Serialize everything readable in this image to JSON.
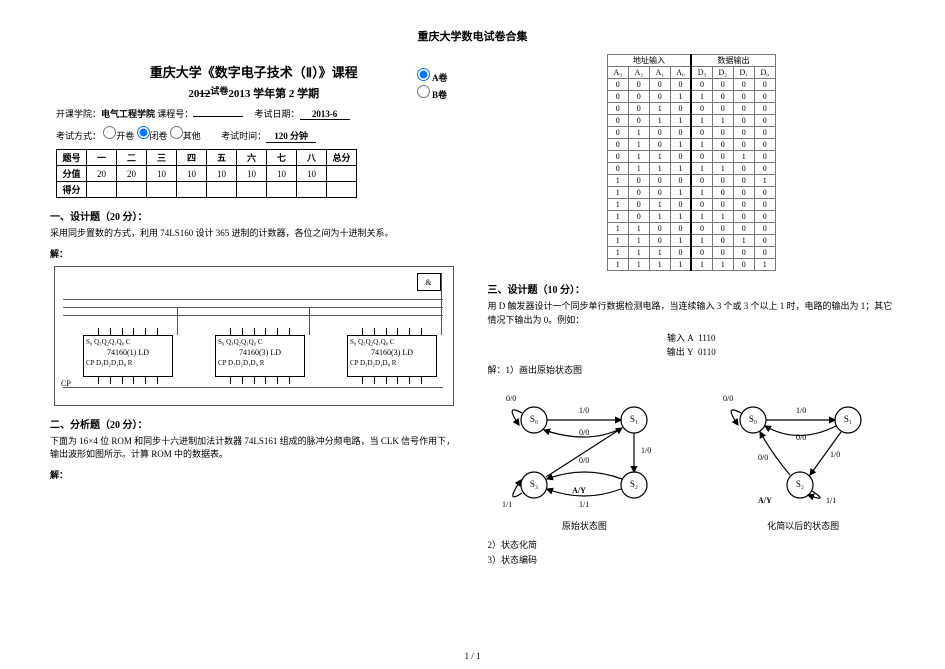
{
  "page": {
    "top_title": "重庆大学数电试卷合集",
    "footer": "1 / 1"
  },
  "header": {
    "course_title": "重庆大学《数字电子技术（Ⅱ）》课程",
    "subtitle_pre": "20",
    "subtitle_strike": "12",
    "subtitle_a": "试卷",
    "subtitle_mid": "2013",
    "subtitle_post": " 学年第 2 学期",
    "paper_a_label": "A卷",
    "paper_b_label": "B卷",
    "dept_label": "开课学院：",
    "dept": "电气工程学院",
    "course_no_label": "  课程号：",
    "exam_date_label": "考试日期：",
    "exam_date": "2013-6",
    "method_label": "考试方式：",
    "open": "开卷",
    "closed": "闭卷",
    "other": "其他",
    "time_label": "考试时间：",
    "time": "120  分钟"
  },
  "score": {
    "rows": [
      "题号",
      "分值",
      "得分"
    ],
    "cols": [
      "一",
      "二",
      "三",
      "四",
      "五",
      "六",
      "七",
      "八",
      "总分"
    ],
    "vals": [
      "20",
      "20",
      "10",
      "10",
      "10",
      "10",
      "10",
      "10",
      ""
    ]
  },
  "q1": {
    "title": "一、设计题（20 分）：",
    "body": "采用同步置数的方式，利用 74LS160 设计 365 进制的计数器，各位之间为十进制关系。",
    "ans": "解："
  },
  "chip": {
    "top": "S₉  Q₃Q₂Q₁Q₀  C",
    "bot": "CP   D₃D₂D₁D₀   R",
    "n1": "74160(1)   LD",
    "n2": "74160(3)   LD",
    "n3": "74160(3)   LD",
    "gate": "&",
    "cp": "CP"
  },
  "q2": {
    "title": "二、分析题（20 分）：",
    "body": "下面为 16×4 位 ROM 和同步十六进制加法计数器 74LS161 组成的脉冲分频电路，当 CLK 信号作用下，输出波形如图所示。计算 ROM 中的数据表。",
    "ans": "解："
  },
  "truth": {
    "hdr_addr": "地址输入",
    "hdr_data": "数据输出",
    "addr_cols": [
      "A₃",
      "A₂",
      "A₁",
      "A₀"
    ],
    "data_cols": [
      "D₃",
      "D₂",
      "D₁",
      "D₀"
    ],
    "rows": [
      [
        "0",
        "0",
        "0",
        "0",
        "0",
        "0",
        "0",
        "0"
      ],
      [
        "0",
        "0",
        "0",
        "1",
        "1",
        "0",
        "0",
        "0"
      ],
      [
        "0",
        "0",
        "1",
        "0",
        "0",
        "0",
        "0",
        "0"
      ],
      [
        "0",
        "0",
        "1",
        "1",
        "1",
        "1",
        "0",
        "0"
      ],
      [
        "0",
        "1",
        "0",
        "0",
        "0",
        "0",
        "0",
        "0"
      ],
      [
        "0",
        "1",
        "0",
        "1",
        "1",
        "0",
        "0",
        "0"
      ],
      [
        "0",
        "1",
        "1",
        "0",
        "0",
        "0",
        "1",
        "0"
      ],
      [
        "0",
        "1",
        "1",
        "1",
        "1",
        "1",
        "0",
        "0"
      ],
      [
        "1",
        "0",
        "0",
        "0",
        "0",
        "0",
        "0",
        "1"
      ],
      [
        "1",
        "0",
        "0",
        "1",
        "1",
        "0",
        "0",
        "0"
      ],
      [
        "1",
        "0",
        "1",
        "0",
        "0",
        "0",
        "0",
        "0"
      ],
      [
        "1",
        "0",
        "1",
        "1",
        "1",
        "1",
        "0",
        "0"
      ],
      [
        "1",
        "1",
        "0",
        "0",
        "0",
        "0",
        "0",
        "0"
      ],
      [
        "1",
        "1",
        "0",
        "1",
        "1",
        "0",
        "1",
        "0"
      ],
      [
        "1",
        "1",
        "1",
        "0",
        "0",
        "0",
        "0",
        "0"
      ],
      [
        "1",
        "1",
        "1",
        "1",
        "1",
        "1",
        "0",
        "1"
      ]
    ]
  },
  "q3": {
    "title": "三、设计题（10 分）：",
    "body": "用 D 触发器设计一个同步单行数据检测电路，当连续输入 3 个或 3 个以上 1 时，电路的输出为 1；其它情况下输出为 0。例如：",
    "ex_in_l": "输入 A",
    "ex_in": "1110",
    "ex_out_l": "输出 Y",
    "ex_out": "0110",
    "ans": "解：1）画出原始状态图"
  },
  "sd": {
    "states": [
      "S₀",
      "S₁",
      "S₂",
      "S₃"
    ],
    "caption1": "原始状态图",
    "caption2": "化简以后的状态图",
    "ay": "A/Y",
    "e00": "0/0",
    "e10": "1/0",
    "e11": "1/1"
  },
  "notes": {
    "n2": "2）状态化简",
    "n3": "3）状态编码"
  }
}
